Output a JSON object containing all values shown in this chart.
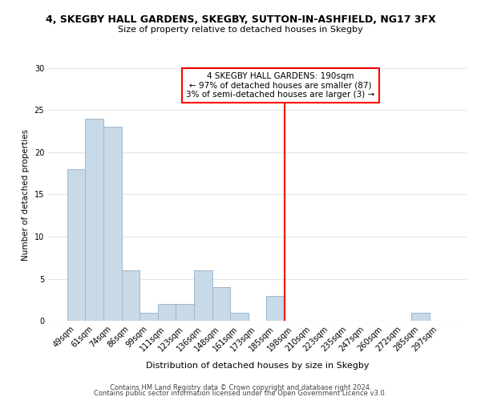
{
  "title": "4, SKEGBY HALL GARDENS, SKEGBY, SUTTON-IN-ASHFIELD, NG17 3FX",
  "subtitle": "Size of property relative to detached houses in Skegby",
  "xlabel": "Distribution of detached houses by size in Skegby",
  "ylabel": "Number of detached properties",
  "categories": [
    "49sqm",
    "61sqm",
    "74sqm",
    "86sqm",
    "99sqm",
    "111sqm",
    "123sqm",
    "136sqm",
    "148sqm",
    "161sqm",
    "173sqm",
    "185sqm",
    "198sqm",
    "210sqm",
    "223sqm",
    "235sqm",
    "247sqm",
    "260sqm",
    "272sqm",
    "285sqm",
    "297sqm"
  ],
  "values": [
    18,
    24,
    23,
    6,
    1,
    2,
    2,
    6,
    4,
    1,
    0,
    3,
    0,
    0,
    0,
    0,
    0,
    0,
    0,
    1,
    0
  ],
  "bar_color": "#c8d9e8",
  "bar_edgecolor": "#a0b8cc",
  "vline_x": 11.5,
  "vline_color": "red",
  "ylim": [
    0,
    30
  ],
  "yticks": [
    0,
    5,
    10,
    15,
    20,
    25,
    30
  ],
  "annotation_text": "4 SKEGBY HALL GARDENS: 190sqm\n← 97% of detached houses are smaller (87)\n3% of semi-detached houses are larger (3) →",
  "footer_line1": "Contains HM Land Registry data © Crown copyright and database right 2024.",
  "footer_line2": "Contains public sector information licensed under the Open Government Licence v3.0.",
  "background_color": "#ffffff",
  "grid_color": "#dce8f0"
}
